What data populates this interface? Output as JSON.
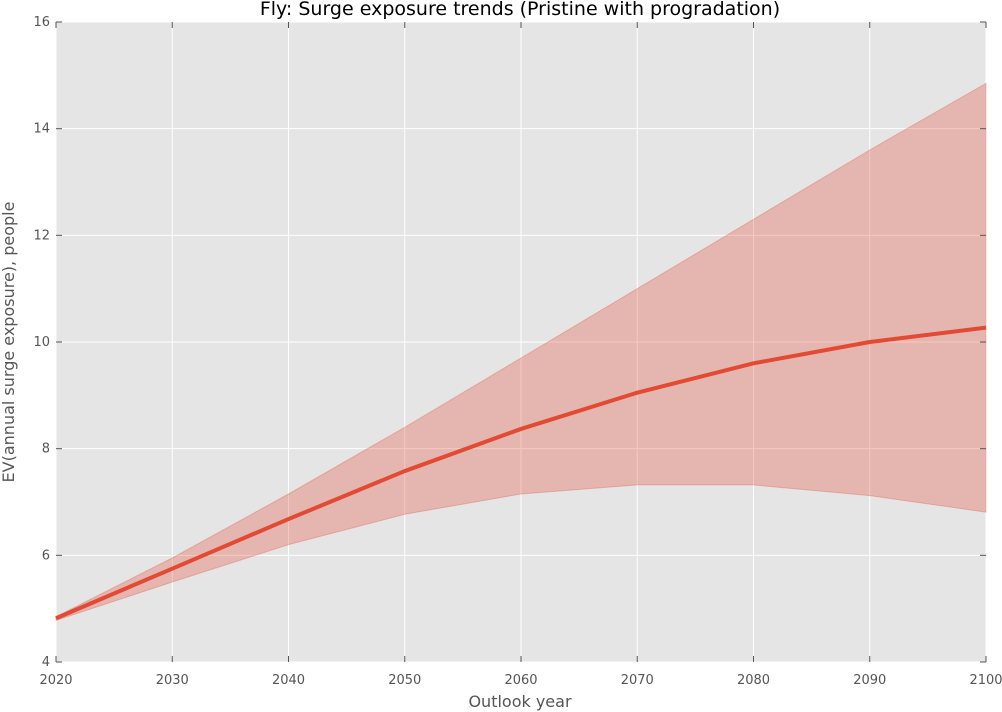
{
  "chart_data": {
    "type": "line",
    "title": "Fly: Surge exposure trends (Pristine with progradation)",
    "xlabel": "Outlook year",
    "ylabel": "EV(annual surge exposure), people",
    "xlim": [
      2020,
      2100
    ],
    "ylim": [
      4,
      16
    ],
    "xticks": [
      2020,
      2030,
      2040,
      2050,
      2060,
      2070,
      2080,
      2090,
      2100
    ],
    "yticks": [
      4,
      6,
      8,
      10,
      12,
      14,
      16
    ],
    "grid": true,
    "series": [
      {
        "x": [
          2020,
          2030,
          2040,
          2050,
          2060,
          2070,
          2080,
          2090,
          2100
        ],
        "values": [
          4.82,
          5.75,
          6.68,
          7.58,
          8.37,
          9.05,
          9.6,
          10.0,
          10.27
        ],
        "lower": [
          4.78,
          5.5,
          6.2,
          6.77,
          7.15,
          7.32,
          7.32,
          7.12,
          6.81
        ],
        "upper": [
          4.85,
          5.95,
          7.15,
          8.4,
          9.7,
          11.0,
          12.3,
          13.6,
          14.85
        ]
      }
    ],
    "colors": {
      "line": "#e24a33",
      "band": "#e24a33",
      "plot_background": "#e5e5e5",
      "grid": "#ffffff"
    }
  }
}
